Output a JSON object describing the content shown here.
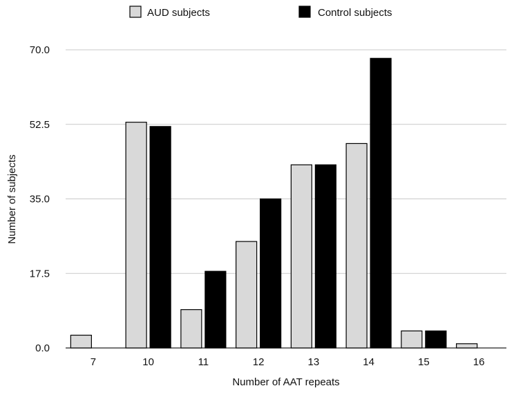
{
  "chart_data": {
    "type": "bar",
    "title": "",
    "xlabel": "Number of AAT repeats",
    "ylabel": "Number of subjects",
    "categories": [
      "7",
      "10",
      "11",
      "12",
      "13",
      "14",
      "15",
      "16"
    ],
    "series": [
      {
        "name": "AUD subjects",
        "color": "#d9d9d9",
        "values": [
          3,
          53,
          9,
          25,
          43,
          48,
          4,
          1
        ]
      },
      {
        "name": "Control subjects",
        "color": "#000000",
        "values": [
          0,
          52,
          18,
          35,
          43,
          68,
          4,
          0
        ]
      }
    ],
    "ylim": [
      0,
      70
    ],
    "yticks": [
      "0.0",
      "17.5",
      "35.0",
      "52.5",
      "70.0"
    ],
    "grid": "horizontal",
    "legend_position": "top"
  }
}
